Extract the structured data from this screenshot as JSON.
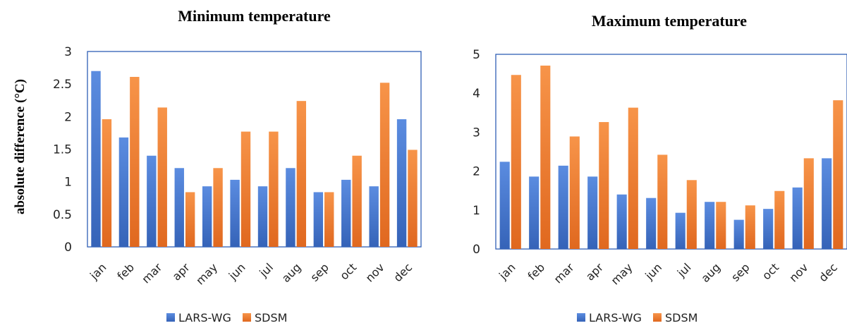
{
  "y_axis_label": "absolute difference (°C)",
  "colors": {
    "LARS-WG": "#4472c4",
    "SDSM": "#ed7d31",
    "plot_border": "#2f5fb5"
  },
  "chart_data": [
    {
      "type": "bar",
      "title": "Minimum temperature",
      "ylabel": "absolute difference (°C)",
      "categories": [
        "jan",
        "feb",
        "mar",
        "apr",
        "may",
        "jun",
        "jul",
        "aug",
        "sep",
        "oct",
        "nov",
        "dec"
      ],
      "ylim": [
        0,
        3
      ],
      "yticks": [
        "0",
        "0.5",
        "1",
        "1.5",
        "2",
        "2.5",
        "3"
      ],
      "series": [
        {
          "name": "LARS-WG",
          "values": [
            2.7,
            1.68,
            1.4,
            1.21,
            0.93,
            1.03,
            0.93,
            1.21,
            0.84,
            1.03,
            0.93,
            1.96
          ]
        },
        {
          "name": "SDSM",
          "values": [
            1.96,
            2.61,
            2.14,
            0.84,
            1.21,
            1.77,
            1.77,
            2.24,
            0.84,
            1.4,
            2.52,
            1.49
          ]
        }
      ],
      "legend": "bottom",
      "grid": false
    },
    {
      "type": "bar",
      "title": "Maximum temperature",
      "ylabel": "",
      "categories": [
        "jan",
        "feb",
        "mar",
        "apr",
        "may",
        "jun",
        "jul",
        "aug",
        "sep",
        "oct",
        "nov",
        "dec"
      ],
      "ylim": [
        0,
        5
      ],
      "yticks": [
        "0",
        "1",
        "2",
        "3",
        "4",
        "5"
      ],
      "series": [
        {
          "name": "LARS-WG",
          "values": [
            2.24,
            1.86,
            2.14,
            1.86,
            1.4,
            1.31,
            0.93,
            1.21,
            0.75,
            1.03,
            1.58,
            2.33
          ]
        },
        {
          "name": "SDSM",
          "values": [
            4.47,
            4.71,
            2.89,
            3.26,
            3.63,
            2.42,
            1.77,
            1.21,
            1.12,
            1.49,
            2.33,
            3.82
          ]
        }
      ],
      "legend": "bottom",
      "grid": false
    }
  ]
}
